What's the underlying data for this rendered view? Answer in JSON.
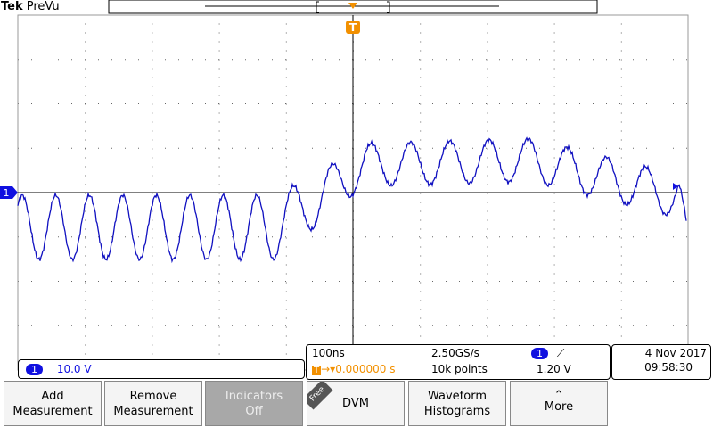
{
  "header": {
    "brand": "Tek",
    "mode": "PreVu"
  },
  "markers": {
    "channel": "1",
    "trigger": "T"
  },
  "channel_readout": {
    "channel": "1",
    "scale": "10.0 V"
  },
  "acquisition": {
    "time_scale": "100ns",
    "sample_rate": "2.50GS/s",
    "trigger_channel": "1",
    "trigger_level": "1.20 V",
    "trigger_position": "0.000000 s",
    "record_length": "10k points"
  },
  "datetime": {
    "date": "4 Nov 2017",
    "time": "09:58:30"
  },
  "buttons": [
    {
      "lines": [
        "Add",
        "Measurement"
      ]
    },
    {
      "lines": [
        "Remove",
        "Measurement"
      ]
    },
    {
      "lines": [
        "Indicators",
        "Off"
      ]
    },
    {
      "tag": "Free",
      "lines": [
        "DVM"
      ]
    },
    {
      "lines": [
        "Waveform",
        "Histograms"
      ]
    },
    {
      "lines": [
        "More"
      ]
    }
  ]
}
